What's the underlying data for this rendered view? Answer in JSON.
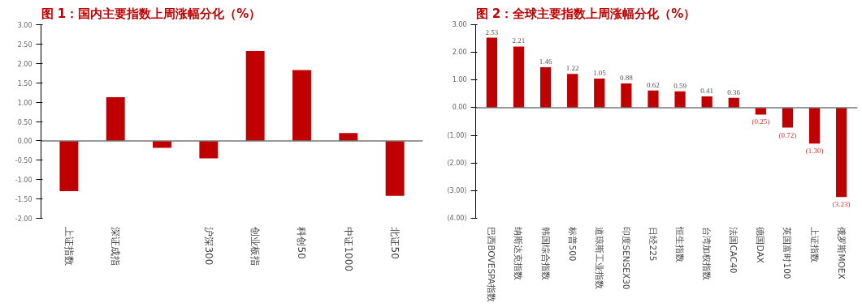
{
  "chart_data": [
    {
      "type": "bar",
      "title": "图 1：国内主要指数上周涨幅分化（%）",
      "categories": [
        "上证指数",
        "深证成指",
        null,
        "沪深300",
        "创业板指",
        "科创50",
        "中证1000",
        "北证50"
      ],
      "values": [
        -1.3,
        1.13,
        -0.18,
        -0.45,
        2.32,
        1.83,
        0.2,
        -1.42
      ],
      "color": "#c00000",
      "ylim": [
        -2,
        3
      ],
      "yticks": [
        {
          "value": -2,
          "label": "-2.00"
        },
        {
          "value": -1.5,
          "label": "-1.50"
        },
        {
          "value": -1,
          "label": "-1.00"
        },
        {
          "value": -0.5,
          "label": "-0.50"
        },
        {
          "value": 0,
          "label": "0.00"
        },
        {
          "value": 0.5,
          "label": "0.50"
        },
        {
          "value": 1,
          "label": "1.00"
        },
        {
          "value": 1.5,
          "label": "1.50"
        },
        {
          "value": 2,
          "label": "2.00"
        },
        {
          "value": 2.5,
          "label": "2.50"
        },
        {
          "value": 3,
          "label": "3.00"
        }
      ]
    },
    {
      "type": "bar",
      "title": "图 2：全球主要指数上周涨幅分化（%）",
      "categories": [
        "巴西BOVESPA指数",
        "纳斯达克指数",
        "韩国综合指数",
        "标普500",
        "道琼斯工业指数",
        "印度SENSEX30",
        "日经225",
        "恒生指数",
        "台湾加权指数",
        "法国CAC40",
        "德国DAX",
        "英国富时100",
        "上证指数",
        "俄罗斯MOEX"
      ],
      "values": [
        2.53,
        2.21,
        1.46,
        1.22,
        1.05,
        0.88,
        0.62,
        0.59,
        0.41,
        0.36,
        -0.25,
        -0.72,
        -1.3,
        -3.23
      ],
      "value_labels": [
        "2.53",
        "2.21",
        "1.46",
        "1.22",
        "1.05",
        "0.88",
        "0.62",
        "0.59",
        "0.41",
        "0.36",
        "(0.25)",
        "(0.72)",
        "(1.30)",
        "(3.23)"
      ],
      "color": "#c00000",
      "ylim": [
        -4,
        3
      ],
      "yticks": [
        {
          "value": -4,
          "label": "(4.00)"
        },
        {
          "value": -3,
          "label": "(3.00)"
        },
        {
          "value": -2,
          "label": "(2.00)"
        },
        {
          "value": -1,
          "label": "(1.00)"
        },
        {
          "value": 0,
          "label": "0.00"
        },
        {
          "value": 1,
          "label": "1.00"
        },
        {
          "value": 2,
          "label": "2.00"
        },
        {
          "value": 3,
          "label": "3.00"
        }
      ]
    }
  ]
}
